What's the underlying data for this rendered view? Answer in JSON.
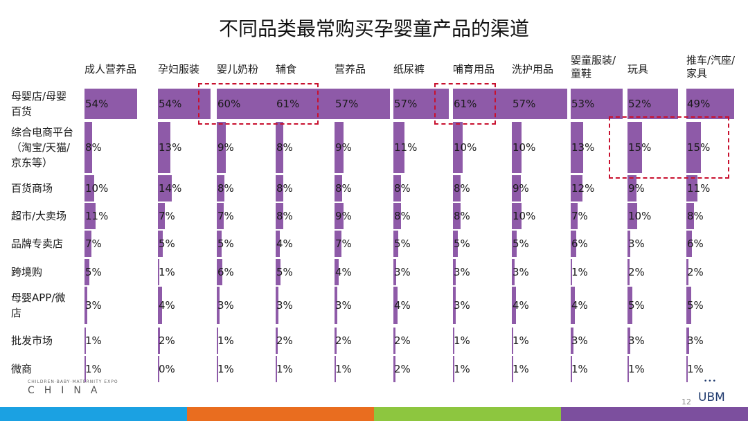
{
  "title": "不同品类最常购买孕婴童产品的渠道",
  "chart_data": {
    "type": "table",
    "title": "不同品类最常购买孕婴童产品的渠道",
    "unit": "%",
    "categories": [
      "成人营养品",
      "孕妇服装",
      "婴儿奶粉",
      "辅食",
      "营养品",
      "纸尿裤",
      "哺育用品",
      "洗护用品",
      "婴童服装/童鞋",
      "玩具",
      "推车/汽座/家具"
    ],
    "category_lines": [
      [
        "成人营养品"
      ],
      [
        "孕妇服装"
      ],
      [
        "婴儿奶粉"
      ],
      [
        "辅食"
      ],
      [
        "营养品"
      ],
      [
        "纸尿裤"
      ],
      [
        "哺育用品"
      ],
      [
        "洗护用品"
      ],
      [
        "婴童服装/",
        "童鞋"
      ],
      [
        "玩具"
      ],
      [
        "推车/汽座/",
        "家具"
      ]
    ],
    "series": [
      {
        "name": "母婴店/母婴百货",
        "lines": [
          "母婴店/母婴",
          "百货"
        ],
        "values": [
          54,
          54,
          60,
          61,
          57,
          57,
          61,
          57,
          53,
          52,
          49
        ]
      },
      {
        "name": "综合电商平台（淘宝/天猫/京东等）",
        "lines": [
          "综合电商平台",
          "（淘宝/天猫/",
          "京东等）"
        ],
        "values": [
          8,
          13,
          9,
          8,
          9,
          11,
          10,
          10,
          13,
          15,
          15
        ]
      },
      {
        "name": "百货商场",
        "lines": [
          "百货商场"
        ],
        "values": [
          10,
          14,
          8,
          8,
          8,
          8,
          8,
          9,
          12,
          9,
          11
        ]
      },
      {
        "name": "超市/大卖场",
        "lines": [
          "超市/大卖场"
        ],
        "values": [
          11,
          7,
          7,
          8,
          9,
          8,
          8,
          10,
          7,
          10,
          8
        ]
      },
      {
        "name": "品牌专卖店",
        "lines": [
          "品牌专卖店"
        ],
        "values": [
          7,
          5,
          5,
          4,
          7,
          5,
          5,
          5,
          6,
          3,
          6
        ]
      },
      {
        "name": "跨境购",
        "lines": [
          "跨境购"
        ],
        "values": [
          5,
          1,
          6,
          5,
          4,
          3,
          3,
          3,
          1,
          2,
          2
        ]
      },
      {
        "name": "母婴APP/微店",
        "lines": [
          "母婴APP/微",
          "店"
        ],
        "values": [
          3,
          4,
          3,
          3,
          3,
          4,
          3,
          4,
          4,
          5,
          5
        ]
      },
      {
        "name": "批发市场",
        "lines": [
          "批发市场"
        ],
        "values": [
          1,
          2,
          1,
          2,
          2,
          2,
          1,
          1,
          3,
          3,
          3
        ]
      },
      {
        "name": "微商",
        "lines": [
          "微商"
        ],
        "values": [
          1,
          0,
          1,
          1,
          1,
          2,
          1,
          1,
          1,
          1,
          1
        ]
      }
    ],
    "highlights": [
      {
        "row": 0,
        "cols": [
          2,
          3
        ]
      },
      {
        "row": 0,
        "cols": [
          6,
          6
        ]
      },
      {
        "row": 1,
        "cols": [
          9,
          10
        ]
      }
    ],
    "bar_color": "#8e5aa8",
    "highlight_color": "#c8102e"
  },
  "footer": {
    "expo_small": "CHILDREN·BABY·MATERNITY EXPO",
    "expo_big": "CHINA",
    "page_number": "12",
    "logo_dots": "•••",
    "logo": "UBM",
    "colors": [
      "#1ba1e2",
      "#e96d1f",
      "#8dc63f",
      "#7c4f9e"
    ]
  }
}
